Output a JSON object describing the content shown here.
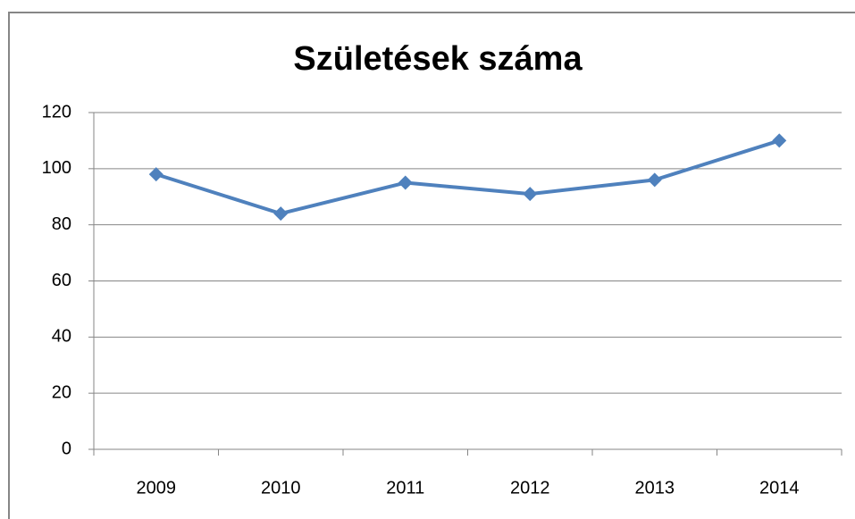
{
  "chart_data": {
    "type": "line",
    "title": "Születések száma",
    "categories": [
      "2009",
      "2010",
      "2011",
      "2012",
      "2013",
      "2014"
    ],
    "series": [
      {
        "name": "Születések száma",
        "color": "#4f81bd",
        "values": [
          98,
          84,
          95,
          91,
          96,
          110
        ]
      }
    ],
    "ylim": [
      0,
      120
    ],
    "yticks": [
      0,
      20,
      40,
      60,
      80,
      100,
      120
    ],
    "grid": true
  }
}
